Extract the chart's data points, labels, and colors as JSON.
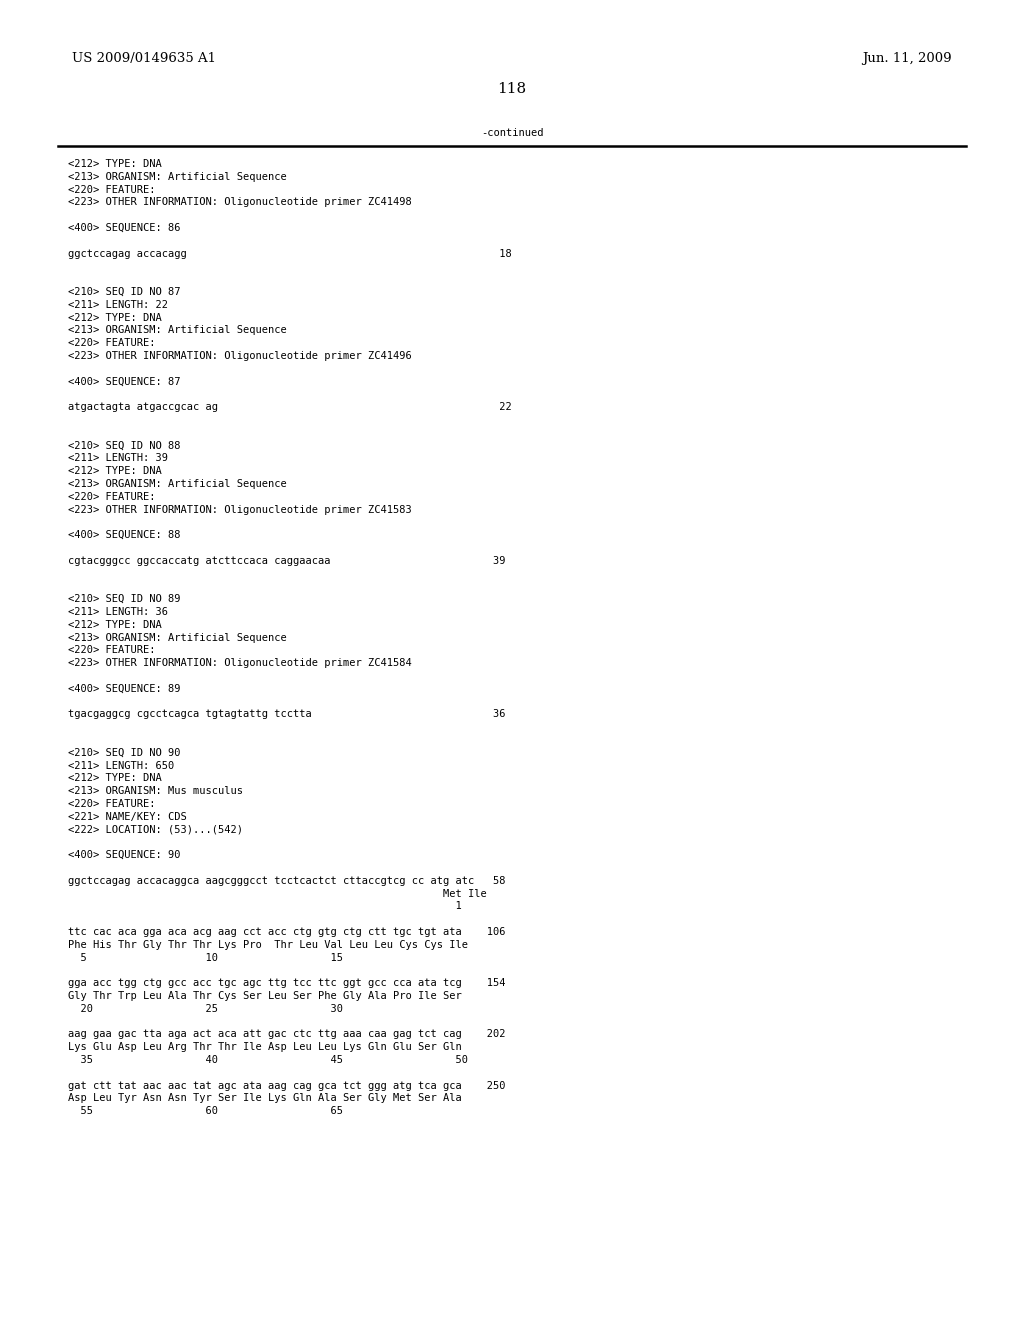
{
  "header_left": "US 2009/0149635 A1",
  "header_right": "Jun. 11, 2009",
  "page_number": "118",
  "continued_text": "-continued",
  "background_color": "#ffffff",
  "text_color": "#000000",
  "font_size_header": 9.5,
  "font_size_page_num": 11.0,
  "font_size_body": 7.5,
  "lines": [
    "<212> TYPE: DNA",
    "<213> ORGANISM: Artificial Sequence",
    "<220> FEATURE:",
    "<223> OTHER INFORMATION: Oligonucleotide primer ZC41498",
    "",
    "<400> SEQUENCE: 86",
    "",
    "ggctccagag accacagg                                                  18",
    "",
    "",
    "<210> SEQ ID NO 87",
    "<211> LENGTH: 22",
    "<212> TYPE: DNA",
    "<213> ORGANISM: Artificial Sequence",
    "<220> FEATURE:",
    "<223> OTHER INFORMATION: Oligonucleotide primer ZC41496",
    "",
    "<400> SEQUENCE: 87",
    "",
    "atgactagta atgaccgcac ag                                             22",
    "",
    "",
    "<210> SEQ ID NO 88",
    "<211> LENGTH: 39",
    "<212> TYPE: DNA",
    "<213> ORGANISM: Artificial Sequence",
    "<220> FEATURE:",
    "<223> OTHER INFORMATION: Oligonucleotide primer ZC41583",
    "",
    "<400> SEQUENCE: 88",
    "",
    "cgtacgggcc ggccaccatg atcttccaca caggaacaa                          39",
    "",
    "",
    "<210> SEQ ID NO 89",
    "<211> LENGTH: 36",
    "<212> TYPE: DNA",
    "<213> ORGANISM: Artificial Sequence",
    "<220> FEATURE:",
    "<223> OTHER INFORMATION: Oligonucleotide primer ZC41584",
    "",
    "<400> SEQUENCE: 89",
    "",
    "tgacgaggcg cgcctcagca tgtagtattg tcctta                             36",
    "",
    "",
    "<210> SEQ ID NO 90",
    "<211> LENGTH: 650",
    "<212> TYPE: DNA",
    "<213> ORGANISM: Mus musculus",
    "<220> FEATURE:",
    "<221> NAME/KEY: CDS",
    "<222> LOCATION: (53)...(542)",
    "",
    "<400> SEQUENCE: 90",
    "",
    "ggctccagag accacaggca aagcgggcct tcctcactct cttaccgtcg cc atg atc   58",
    "                                                            Met Ile",
    "                                                              1",
    "",
    "ttc cac aca gga aca acg aag cct acc ctg gtg ctg ctt tgc tgt ata    106",
    "Phe His Thr Gly Thr Thr Lys Pro  Thr Leu Val Leu Leu Cys Cys Ile",
    "  5                   10                  15",
    "",
    "gga acc tgg ctg gcc acc tgc agc ttg tcc ttc ggt gcc cca ata tcg    154",
    "Gly Thr Trp Leu Ala Thr Cys Ser Leu Ser Phe Gly Ala Pro Ile Ser",
    "  20                  25                  30",
    "",
    "aag gaa gac tta aga act aca att gac ctc ttg aaa caa gag tct cag    202",
    "Lys Glu Asp Leu Arg Thr Thr Ile Asp Leu Leu Lys Gln Glu Ser Gln",
    "  35                  40                  45                  50",
    "",
    "gat ctt tat aac aac tat agc ata aag cag gca tct ggg atg tca gca    250",
    "Asp Leu Tyr Asn Asn Tyr Ser Ile Lys Gln Ala Ser Gly Met Ser Ala",
    "  55                  60                  65"
  ]
}
